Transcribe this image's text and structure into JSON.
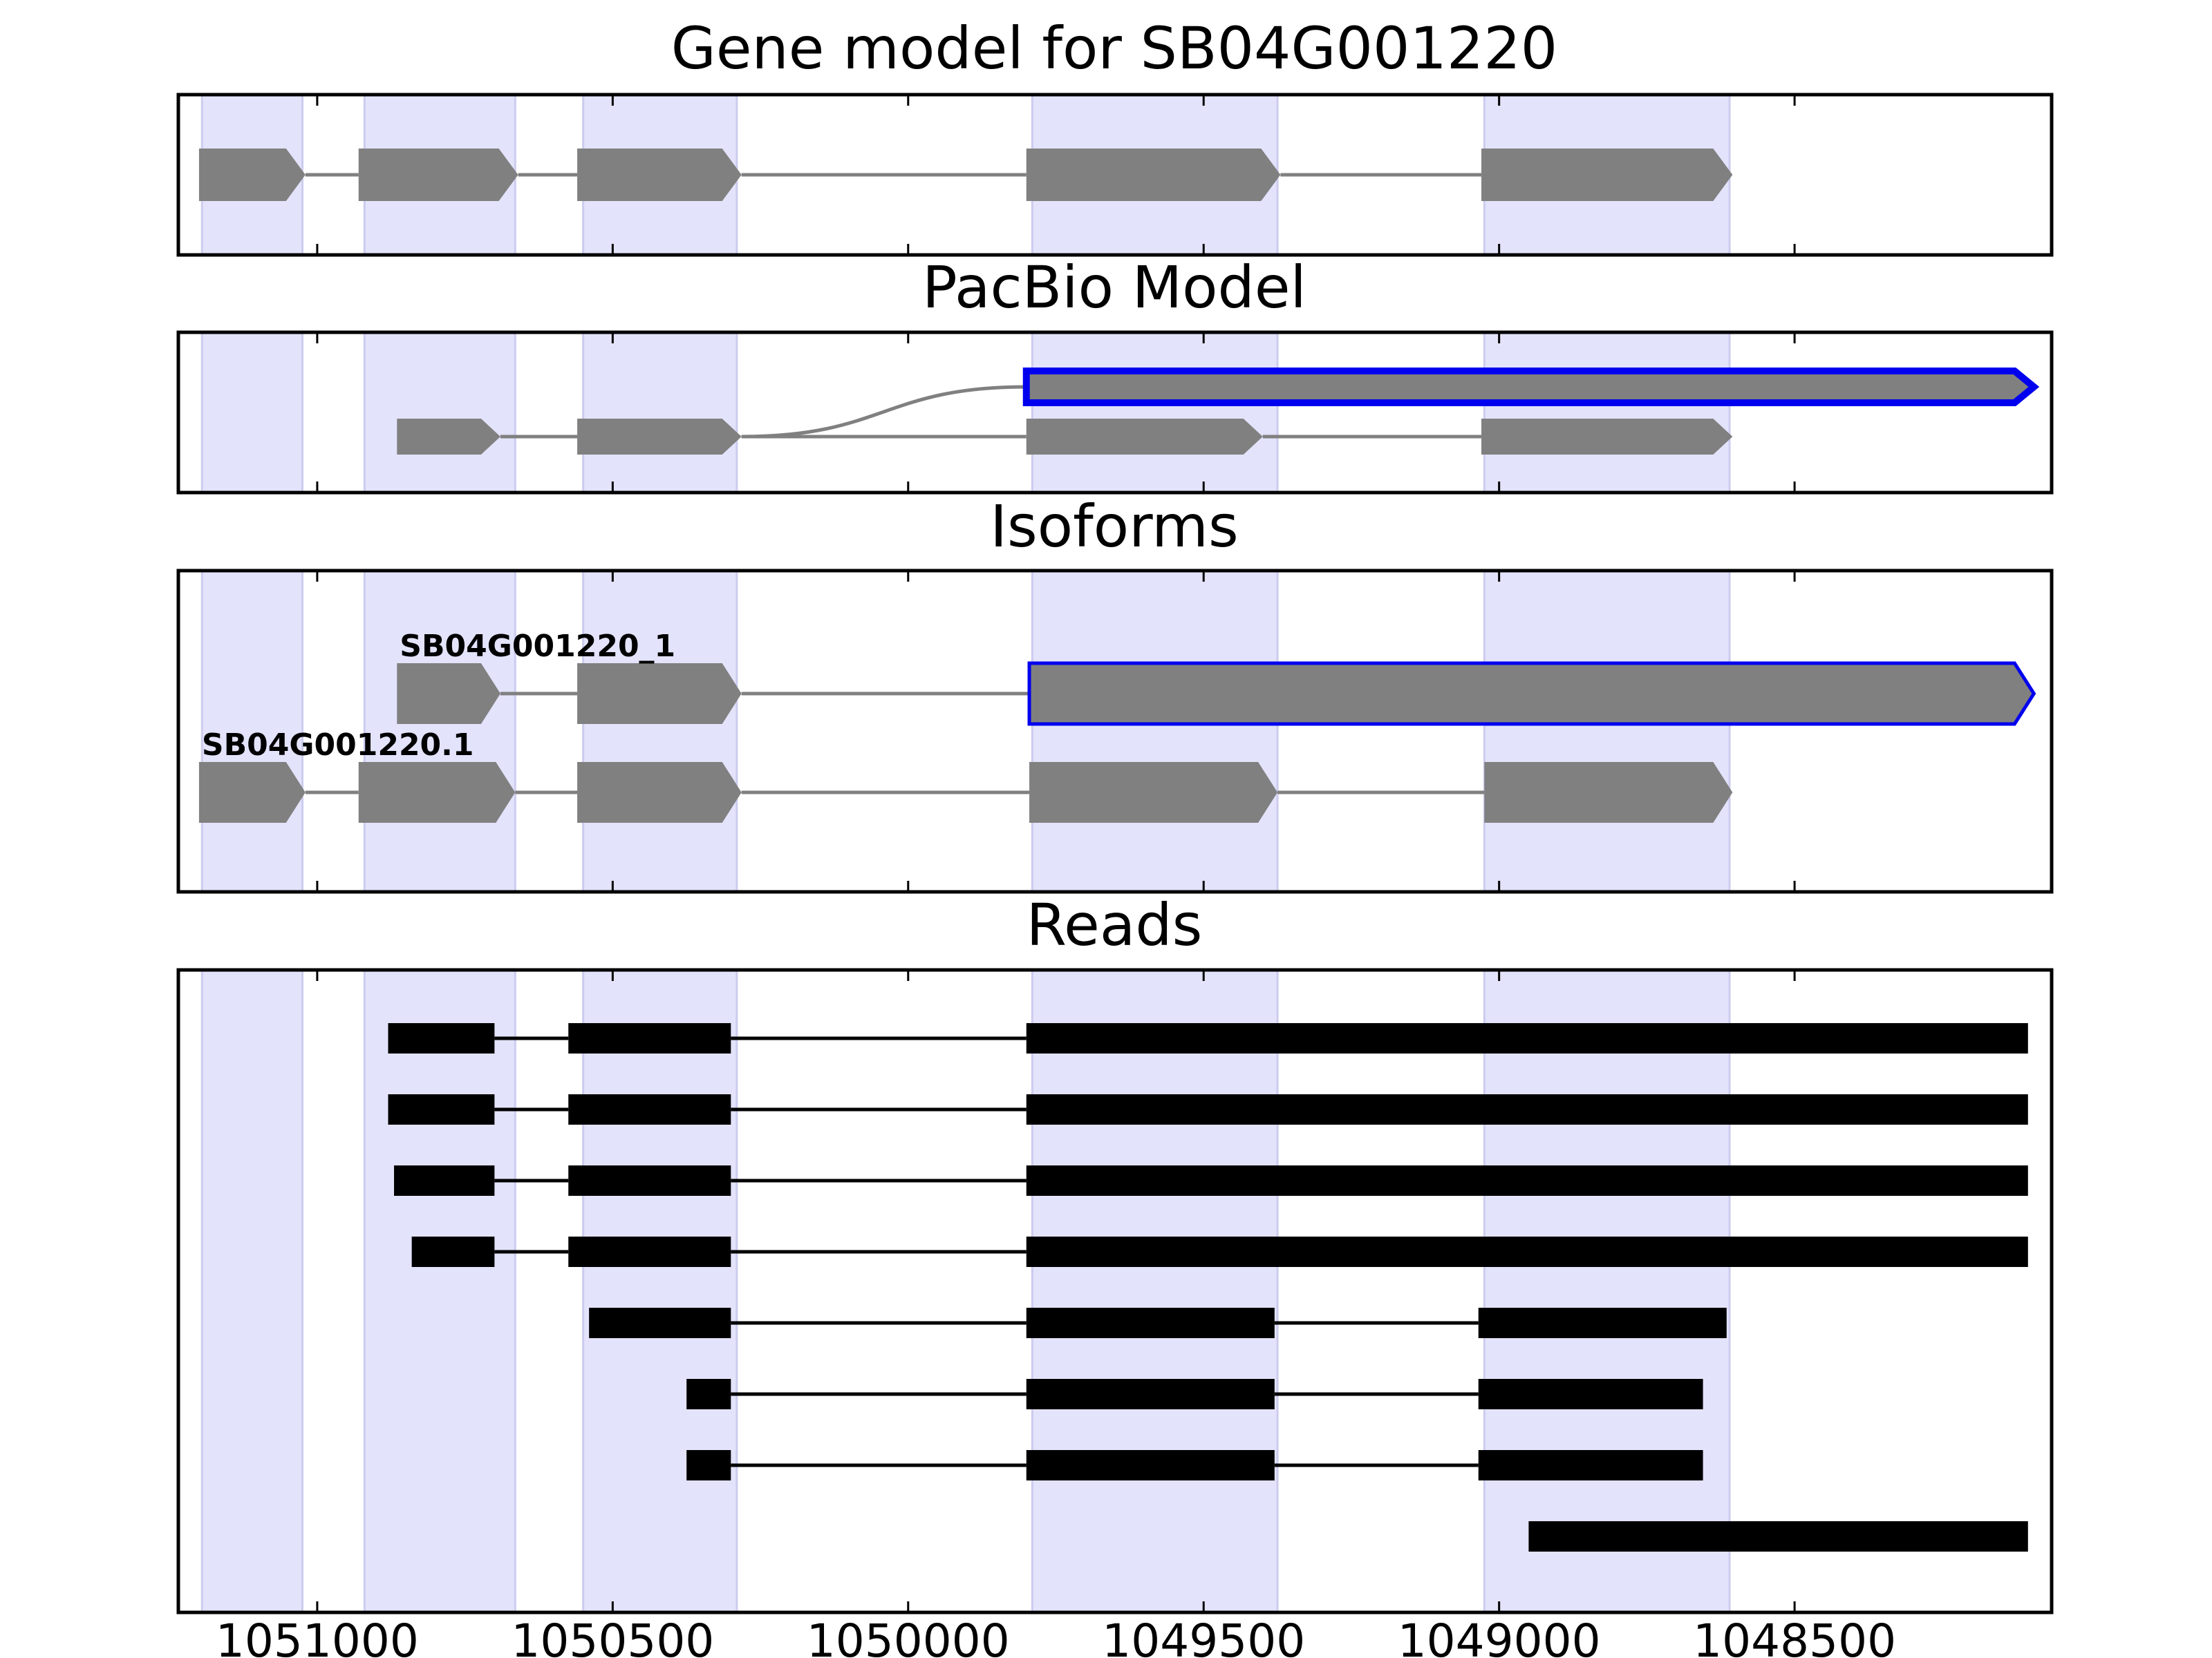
{
  "figure": {
    "panels": [
      {
        "title": "Gene model for SB04G001220"
      },
      {
        "title": "PacBio Model"
      },
      {
        "title": "Isoforms"
      },
      {
        "title": "Reads"
      }
    ],
    "x_axis": {
      "reversed": true,
      "range": [
        1051235,
        1048065
      ],
      "ticks": [
        1051000,
        1050500,
        1050000,
        1049500,
        1049000,
        1048500
      ],
      "tick_labels": [
        "1051000",
        "1050500",
        "1050000",
        "1049500",
        "1049000",
        "1048500"
      ]
    },
    "exon_highlights": [
      [
        1051195,
        1051025
      ],
      [
        1050920,
        1050665
      ],
      [
        1050550,
        1050290
      ],
      [
        1049790,
        1049375
      ],
      [
        1049025,
        1048610
      ]
    ],
    "colors": {
      "highlight": "#e3e3fb",
      "highlight_edge": "#ccccf0",
      "exon_fill": "#808080",
      "intron": "#808080",
      "selected_outline": "#0000ee",
      "read": "#000000"
    },
    "gene_model": {
      "exons": [
        [
          1051200,
          1051020
        ],
        [
          1050930,
          1050660
        ],
        [
          1050560,
          1050282
        ],
        [
          1049800,
          1049370
        ],
        [
          1049030,
          1048605
        ]
      ]
    },
    "pacbio_model": {
      "merged_exon": [
        1049800,
        1048095
      ],
      "rows": [
        {
          "exons": [
            [
              1050865,
              1050690
            ],
            [
              1050560,
              1050282
            ],
            [
              1049800,
              1049400
            ],
            [
              1049030,
              1048605
            ]
          ]
        }
      ]
    },
    "isoforms": [
      {
        "label": "SB04G001220_1",
        "selected": true,
        "exons": [
          [
            1050865,
            1050690
          ],
          [
            1050560,
            1050282
          ],
          [
            1049795,
            1048095
          ]
        ]
      },
      {
        "label": "SB04G001220.1",
        "selected": false,
        "exons": [
          [
            1051200,
            1051020
          ],
          [
            1050930,
            1050665
          ],
          [
            1050560,
            1050282
          ],
          [
            1049795,
            1049375
          ],
          [
            1049025,
            1048605
          ]
        ]
      }
    ],
    "reads": [
      [
        [
          1050880,
          1050700
        ],
        [
          1050575,
          1050300
        ],
        [
          1049800,
          1048105
        ]
      ],
      [
        [
          1050880,
          1050700
        ],
        [
          1050575,
          1050300
        ],
        [
          1049800,
          1048105
        ]
      ],
      [
        [
          1050870,
          1050700
        ],
        [
          1050575,
          1050300
        ],
        [
          1049800,
          1048105
        ]
      ],
      [
        [
          1050840,
          1050700
        ],
        [
          1050575,
          1050300
        ],
        [
          1049800,
          1048105
        ]
      ],
      [
        [
          1050540,
          1050300
        ],
        [
          1049800,
          1049380
        ],
        [
          1049035,
          1048615
        ]
      ],
      [
        [
          1050375,
          1050300
        ],
        [
          1049800,
          1049380
        ],
        [
          1049035,
          1048655
        ]
      ],
      [
        [
          1050375,
          1050300
        ],
        [
          1049800,
          1049380
        ],
        [
          1049035,
          1048655
        ]
      ],
      [
        [
          1048950,
          1048105
        ]
      ]
    ]
  }
}
